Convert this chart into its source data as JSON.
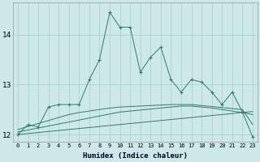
{
  "xlabel": "Humidex (Indice chaleur)",
  "x_main": [
    0,
    1,
    2,
    3,
    4,
    5,
    6,
    7,
    8,
    9,
    10,
    11,
    12,
    13,
    14,
    15,
    16,
    17,
    18,
    19,
    20,
    21,
    22,
    23
  ],
  "y_main": [
    12.0,
    12.2,
    12.15,
    12.55,
    12.6,
    12.6,
    12.6,
    13.1,
    13.5,
    14.45,
    14.15,
    14.15,
    13.25,
    13.55,
    13.75,
    13.1,
    12.85,
    13.1,
    13.05,
    12.85,
    12.6,
    12.85,
    12.45,
    11.95
  ],
  "y_line1": [
    12.0,
    12.02,
    12.04,
    12.06,
    12.08,
    12.1,
    12.12,
    12.14,
    12.16,
    12.18,
    12.2,
    12.22,
    12.24,
    12.26,
    12.28,
    12.3,
    12.32,
    12.34,
    12.36,
    12.38,
    12.4,
    12.42,
    12.44,
    12.46
  ],
  "y_line2": [
    12.05,
    12.09,
    12.13,
    12.17,
    12.21,
    12.25,
    12.29,
    12.33,
    12.37,
    12.41,
    12.45,
    12.47,
    12.49,
    12.51,
    12.53,
    12.55,
    12.57,
    12.57,
    12.55,
    12.53,
    12.5,
    12.47,
    12.44,
    12.4
  ],
  "y_line3": [
    12.1,
    12.16,
    12.22,
    12.28,
    12.34,
    12.4,
    12.44,
    12.47,
    12.5,
    12.53,
    12.55,
    12.56,
    12.57,
    12.58,
    12.59,
    12.6,
    12.6,
    12.6,
    12.58,
    12.56,
    12.54,
    12.52,
    12.5,
    12.2
  ],
  "line_color": "#2e7d6e",
  "bg_color": "#cce8e8",
  "grid_color": "#aacccc",
  "ylim": [
    11.85,
    14.65
  ],
  "yticks": [
    12,
    13,
    14
  ],
  "xlim": [
    -0.5,
    23.5
  ]
}
